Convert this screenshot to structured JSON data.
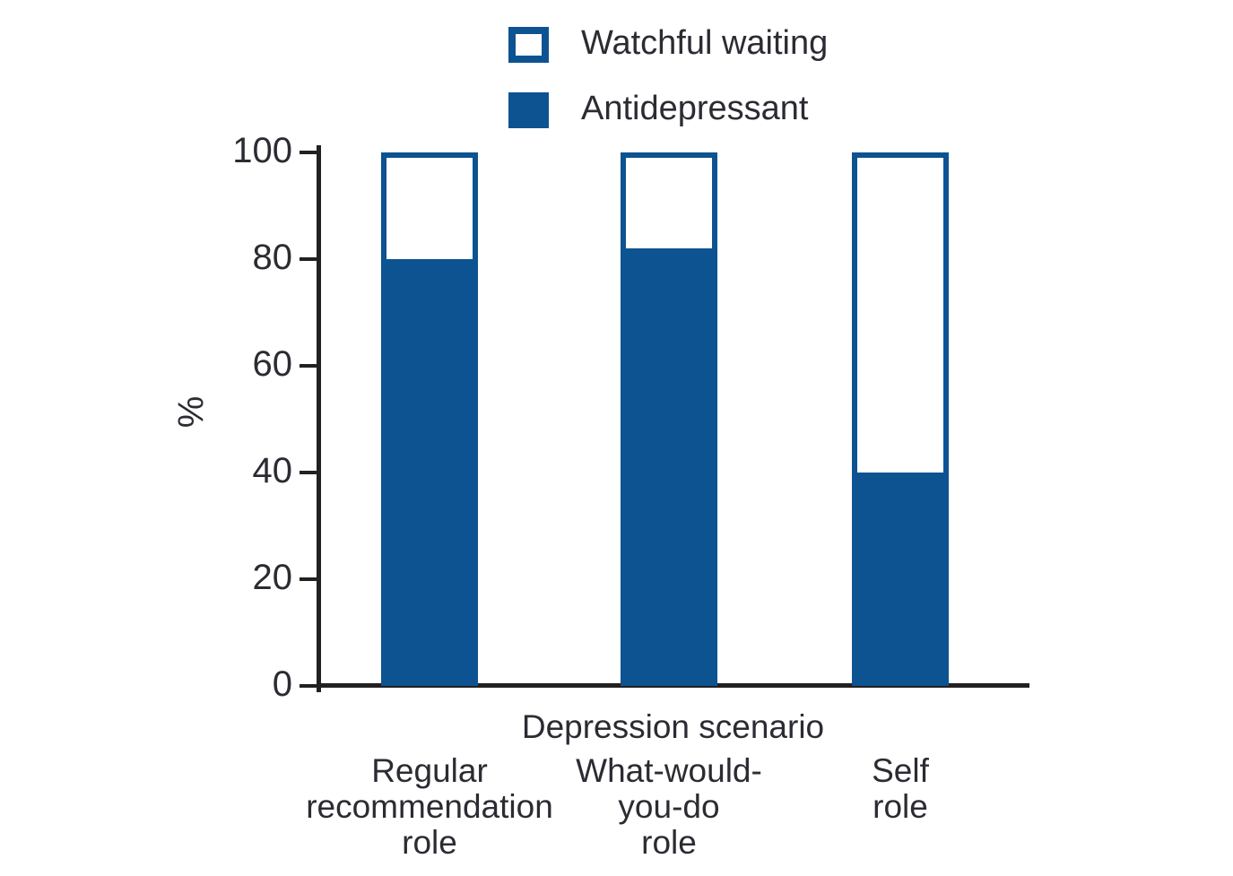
{
  "chart_data": {
    "type": "bar",
    "stacked": true,
    "title": "",
    "xlabel": "Depression scenario",
    "ylabel": "%",
    "ylim": [
      0,
      100
    ],
    "yticks": [
      0,
      20,
      40,
      60,
      80,
      100
    ],
    "grid": false,
    "legend_position": "top",
    "categories": [
      "Regular recommendation role",
      "What-would-you-do role",
      "Self role"
    ],
    "category_lines": [
      [
        "Regular",
        "recommendation",
        "role"
      ],
      [
        "What-would-",
        "you-do",
        "role"
      ],
      [
        "Self",
        "role"
      ]
    ],
    "series": [
      {
        "name": "Antidepressant",
        "values": [
          79,
          81,
          39
        ],
        "style": "filled"
      },
      {
        "name": "Watchful waiting",
        "values": [
          21,
          19,
          61
        ],
        "style": "outlined"
      }
    ],
    "legend": [
      {
        "label": "Watchful waiting",
        "swatch": "outlined"
      },
      {
        "label": "Antidepressant",
        "swatch": "filled"
      }
    ],
    "colors": {
      "bar_fill": "#0d5391",
      "bar_outline": "#0d5391",
      "axis": "#232021",
      "text": "#2c2b33",
      "background": "#ffffff"
    }
  }
}
